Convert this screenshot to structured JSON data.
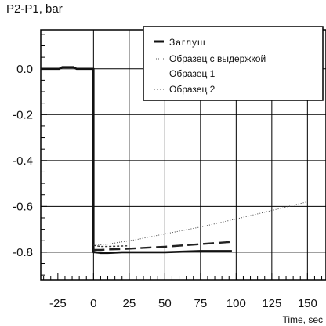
{
  "chart_data": {
    "type": "line",
    "ylabel": "P2-P1, bar",
    "xlabel": "Time, sec",
    "xlim": [
      -37,
      163
    ],
    "ylim": [
      -0.92,
      0.17
    ],
    "x_ticks": [
      -25,
      0,
      25,
      50,
      75,
      100,
      125,
      150
    ],
    "x_tick_labels": [
      "-25",
      "0",
      "25",
      "50",
      "75",
      "100",
      "125",
      "150"
    ],
    "y_ticks": [
      0.0,
      -0.2,
      -0.4,
      -0.6,
      -0.8
    ],
    "y_tick_labels": [
      "0.0",
      "-0.2",
      "-0.4",
      "-0.6",
      "-0.8"
    ],
    "grid": true,
    "legend_position": "top-right",
    "series": [
      {
        "name": "Заглуш",
        "style": "solid-thick",
        "color": "#111111",
        "x": [
          -37,
          -24,
          -22,
          -14,
          -12,
          0,
          0,
          1,
          5,
          10,
          20,
          30,
          50,
          75,
          97
        ],
        "y": [
          0.0,
          0.0,
          0.007,
          0.007,
          0.0,
          0.0,
          -0.8,
          -0.8,
          -0.803,
          -0.803,
          -0.8,
          -0.8,
          -0.8,
          -0.795,
          -0.795
        ]
      },
      {
        "name": "Образец с выдержкой",
        "style": "dotted",
        "color": "#444444",
        "x": [
          0,
          5,
          10,
          20,
          30,
          50,
          75,
          100,
          125,
          150
        ],
        "y": [
          -0.765,
          -0.768,
          -0.765,
          -0.755,
          -0.745,
          -0.72,
          -0.69,
          -0.655,
          -0.618,
          -0.58
        ]
      },
      {
        "name": "Образец 1",
        "style": "long-dash",
        "color": "#222222",
        "x": [
          0,
          5,
          10,
          20,
          30,
          50,
          75,
          97
        ],
        "y": [
          -0.79,
          -0.79,
          -0.788,
          -0.786,
          -0.783,
          -0.776,
          -0.765,
          -0.755
        ]
      },
      {
        "name": "Образец 2",
        "style": "short-dash",
        "color": "#333333",
        "x": [
          0,
          5,
          10,
          20,
          25
        ],
        "y": [
          -0.77,
          -0.775,
          -0.775,
          -0.773,
          -0.772
        ]
      }
    ]
  }
}
